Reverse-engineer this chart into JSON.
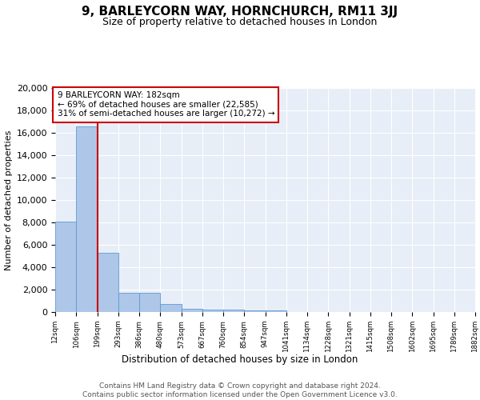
{
  "title1": "9, BARLEYCORN WAY, HORNCHURCH, RM11 3JJ",
  "title2": "Size of property relative to detached houses in London",
  "xlabel": "Distribution of detached houses by size in London",
  "ylabel": "Number of detached properties",
  "bar_values": [
    8100,
    16600,
    5300,
    1750,
    1750,
    700,
    300,
    250,
    200,
    150,
    150,
    0,
    0,
    0,
    0,
    0,
    0,
    0,
    0,
    0
  ],
  "bin_labels": [
    "12sqm",
    "106sqm",
    "199sqm",
    "293sqm",
    "386sqm",
    "480sqm",
    "573sqm",
    "667sqm",
    "760sqm",
    "854sqm",
    "947sqm",
    "1041sqm",
    "1134sqm",
    "1228sqm",
    "1321sqm",
    "1415sqm",
    "1508sqm",
    "1602sqm",
    "1695sqm",
    "1789sqm",
    "1882sqm"
  ],
  "bar_color": "#aec6e8",
  "bar_edge_color": "#5b9bd5",
  "bg_color": "#e8eef7",
  "grid_color": "#ffffff",
  "vline_color": "#cc0000",
  "annotation_text": "9 BARLEYCORN WAY: 182sqm\n← 69% of detached houses are smaller (22,585)\n31% of semi-detached houses are larger (10,272) →",
  "annotation_box_color": "#ffffff",
  "annotation_box_edge": "#cc0000",
  "ylim": [
    0,
    20000
  ],
  "yticks": [
    0,
    2000,
    4000,
    6000,
    8000,
    10000,
    12000,
    14000,
    16000,
    18000,
    20000
  ],
  "footnote": "Contains HM Land Registry data © Crown copyright and database right 2024.\nContains public sector information licensed under the Open Government Licence v3.0.",
  "property_bin_index": 1
}
